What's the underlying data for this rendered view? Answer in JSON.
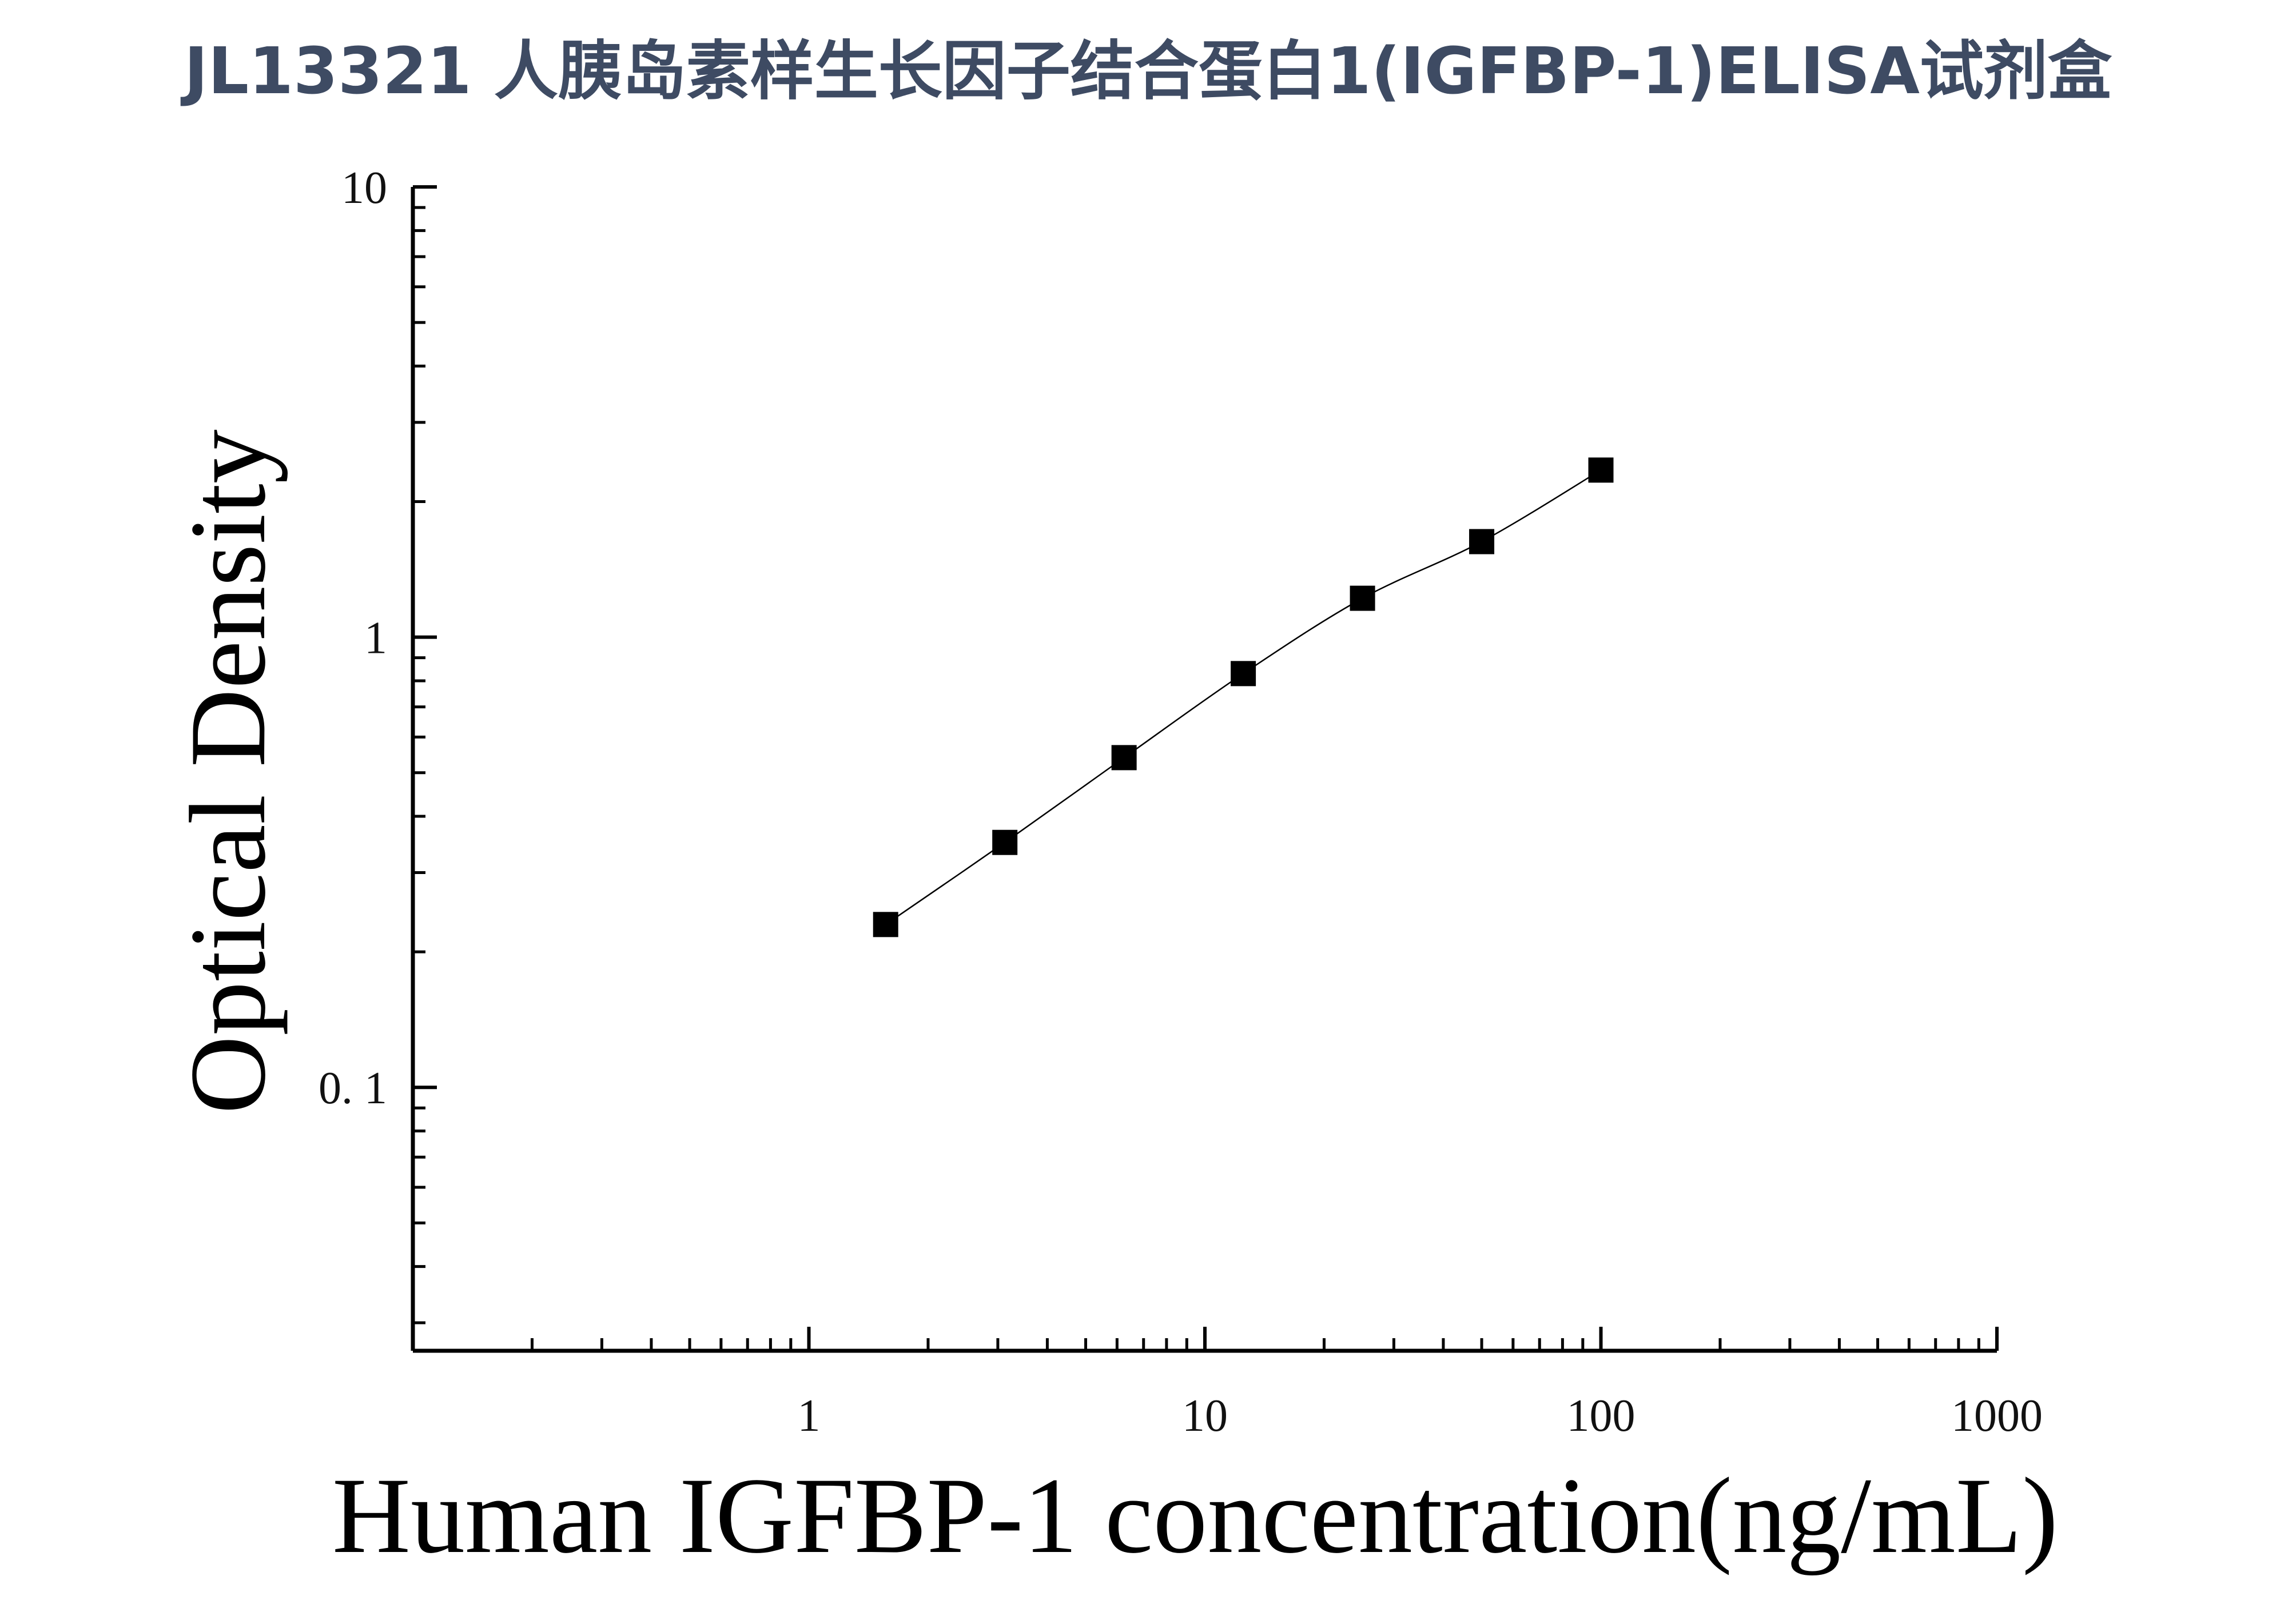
{
  "title": "JL13321 人胰岛素样生长因子结合蛋白1(IGFBP-1)ELISA试剂盒",
  "chart_data": {
    "type": "scatter",
    "x_scale": "log",
    "y_scale": "log",
    "xlabel": "Human IGFBP-1 concentration(ng/mL)",
    "ylabel": "Optical Density",
    "xlim": [
      0.1,
      1000
    ],
    "ylim": [
      0.026,
      10
    ],
    "x_ticks": [
      {
        "value": 1,
        "label": "1"
      },
      {
        "value": 10,
        "label": "10"
      },
      {
        "value": 100,
        "label": "100"
      },
      {
        "value": 1000,
        "label": "1000"
      }
    ],
    "y_ticks": [
      {
        "value": 0.1,
        "label": "0. 1"
      },
      {
        "value": 1,
        "label": "1"
      },
      {
        "value": 10,
        "label": "10"
      }
    ],
    "grid": false,
    "marker": "square",
    "fit_line": true,
    "series": [
      {
        "x": [
          1.5625,
          3.125,
          6.25,
          12.5,
          25,
          50,
          100
        ],
        "y": [
          0.23,
          0.35,
          0.54,
          0.83,
          1.22,
          1.63,
          2.35
        ]
      }
    ],
    "colors": {
      "marker": "#000000",
      "line": "#000000",
      "axis": "#000000"
    }
  }
}
